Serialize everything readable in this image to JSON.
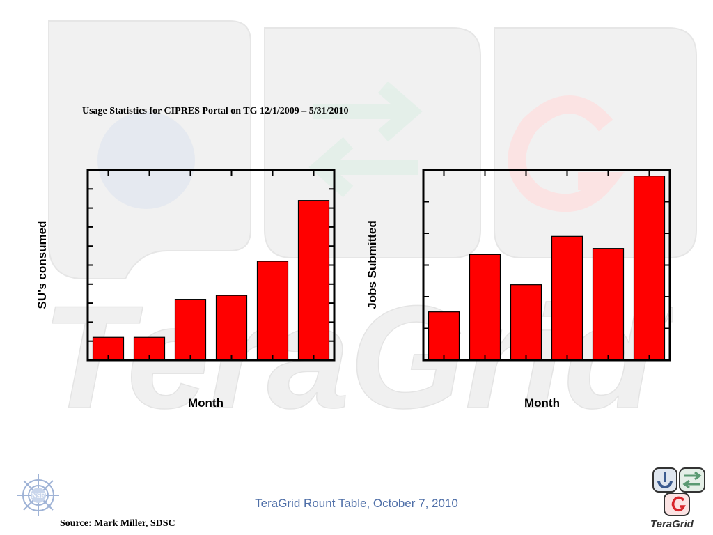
{
  "slide": {
    "title": "Usage Statistics for CIPRES Portal on TG 12/1/2009 – 5/31/2010",
    "footer": "TeraGrid Rount Table, October 7, 2010",
    "source": "Source: Mark Miller, SDSC",
    "watermark_text": "TeraGrid",
    "logo_text": "TeraGrid",
    "logo_tm": "TM",
    "nsf_text": "NSF"
  },
  "colors": {
    "bar": "#ff0000",
    "footer": "#4f6fa8",
    "watermark": "#ececec"
  },
  "chart_data": [
    {
      "type": "bar",
      "title": "",
      "xlabel": "Month",
      "ylabel": "SU's consumed",
      "categories": [
        "",
        "",
        "",
        "",
        "",
        ""
      ],
      "values": [
        12,
        12,
        32,
        34,
        52,
        84
      ],
      "ylim": [
        0,
        100
      ],
      "grid": false,
      "legend": "none"
    },
    {
      "type": "bar",
      "title": "",
      "xlabel": "Month",
      "ylabel": "Jobs Submitted",
      "categories": [
        "",
        "",
        "",
        "",
        "",
        ""
      ],
      "values": [
        16,
        35,
        25,
        41,
        37,
        61
      ],
      "ylim": [
        0,
        63
      ],
      "grid": false,
      "legend": "none"
    }
  ]
}
